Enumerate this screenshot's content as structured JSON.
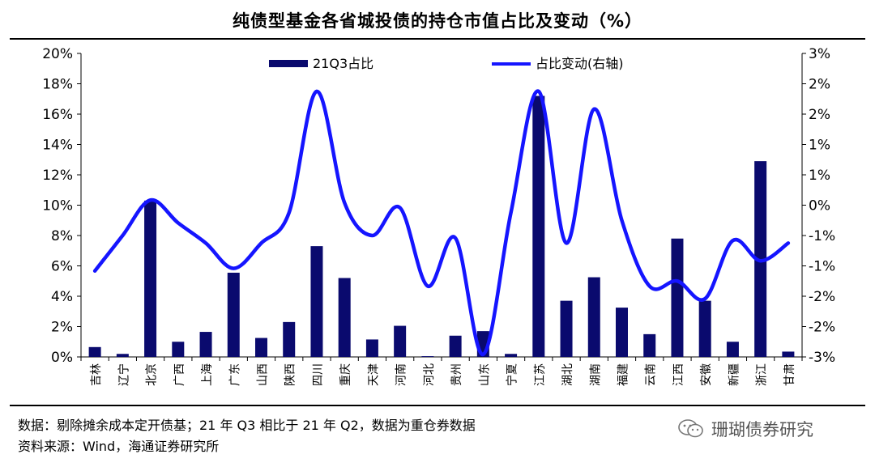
{
  "title": "纯债型基金各省城投债的持仓市值占比及变动（%）",
  "notes": {
    "line1": "数据：剔除摊余成本定开债基；21 年 Q3 相比于 21 年 Q2，数据为重仓券数据",
    "line2": "资料来源：Wind，海通证券研究所"
  },
  "watermark": {
    "text": "珊瑚债券研究",
    "icon": "wechat-icon"
  },
  "colors": {
    "bar": "#0a0a6e",
    "line": "#1515ff",
    "rule": "#000000"
  },
  "chart_data": {
    "type": "bar",
    "title": "纯债型基金各省城投债的持仓市值占比及变动（%）",
    "categories": [
      "吉林",
      "辽宁",
      "北京",
      "广西",
      "上海",
      "广东",
      "山西",
      "陕西",
      "四川",
      "重庆",
      "天津",
      "河南",
      "河北",
      "贵州",
      "山东",
      "宁夏",
      "江苏",
      "湖北",
      "湖南",
      "福建",
      "云南",
      "江西",
      "安徽",
      "新疆",
      "浙江",
      "甘肃"
    ],
    "legend_position": "top",
    "grid": false,
    "y_left": {
      "ylim": [
        0,
        20
      ],
      "ticks": [
        "0%",
        "2%",
        "4%",
        "6%",
        "8%",
        "10%",
        "12%",
        "14%",
        "16%",
        "18%",
        "20%"
      ]
    },
    "y_right": {
      "ylim": [
        -3,
        3
      ],
      "ticks": [
        "-3%",
        "-2%",
        "-2%",
        "-1%",
        "-1%",
        "0%",
        "1%",
        "1%",
        "2%",
        "2%",
        "3%"
      ]
    },
    "series": [
      {
        "name": "21Q3占比",
        "type": "bar",
        "axis": "left",
        "values": [
          0.65,
          0.2,
          10.3,
          1.0,
          1.65,
          5.55,
          1.25,
          2.3,
          7.3,
          5.2,
          1.15,
          2.05,
          0.05,
          1.4,
          1.7,
          0.2,
          17.2,
          3.7,
          5.25,
          3.25,
          1.5,
          7.8,
          3.7,
          1.0,
          12.9,
          0.35
        ]
      },
      {
        "name": "占比变动(右轴)",
        "type": "line",
        "axis": "right",
        "values": [
          -1.3,
          -0.6,
          0.1,
          -0.35,
          -0.75,
          -1.25,
          -0.75,
          -0.15,
          2.25,
          0.05,
          -0.6,
          -0.05,
          -1.6,
          -0.65,
          -2.95,
          -0.15,
          2.25,
          -0.75,
          1.9,
          -0.3,
          -1.6,
          -1.5,
          -1.85,
          -0.7,
          -1.1,
          -0.75
        ]
      }
    ]
  }
}
